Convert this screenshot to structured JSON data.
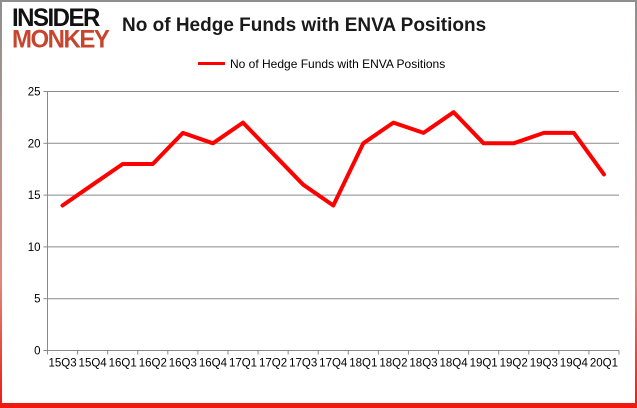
{
  "branding": {
    "line1": "INSIDER",
    "line2": "MONKEY",
    "line1_color": "#111111",
    "line2_color": "#c7452f"
  },
  "title": "No of Hedge Funds with ENVA Positions",
  "legend": {
    "label": "No of Hedge Funds with ENVA Positions",
    "swatch_color": "#ff0000"
  },
  "colors": {
    "series_line": "#ff0000",
    "gridline": "#8a8a8a",
    "axis": "#8a8a8a",
    "tick_text": "#000000"
  },
  "chart_data": {
    "type": "line",
    "title": "No of Hedge Funds with ENVA Positions",
    "categories": [
      "15Q3",
      "15Q4",
      "16Q1",
      "16Q2",
      "16Q3",
      "16Q4",
      "17Q1",
      "17Q2",
      "17Q3",
      "17Q4",
      "18Q1",
      "18Q2",
      "18Q3",
      "18Q4",
      "19Q1",
      "19Q2",
      "19Q3",
      "19Q4",
      "20Q1"
    ],
    "series": [
      {
        "name": "No of Hedge Funds with ENVA Positions",
        "color": "#ff0000",
        "values": [
          14,
          16,
          18,
          18,
          21,
          20,
          22,
          19,
          16,
          14,
          20,
          22,
          21,
          23,
          20,
          20,
          21,
          21,
          17
        ]
      }
    ],
    "xlabel": "",
    "ylabel": "",
    "ylim": [
      0,
      25
    ],
    "yticks": [
      0,
      5,
      10,
      15,
      20,
      25
    ],
    "grid": true,
    "legend_position": "top-center"
  }
}
